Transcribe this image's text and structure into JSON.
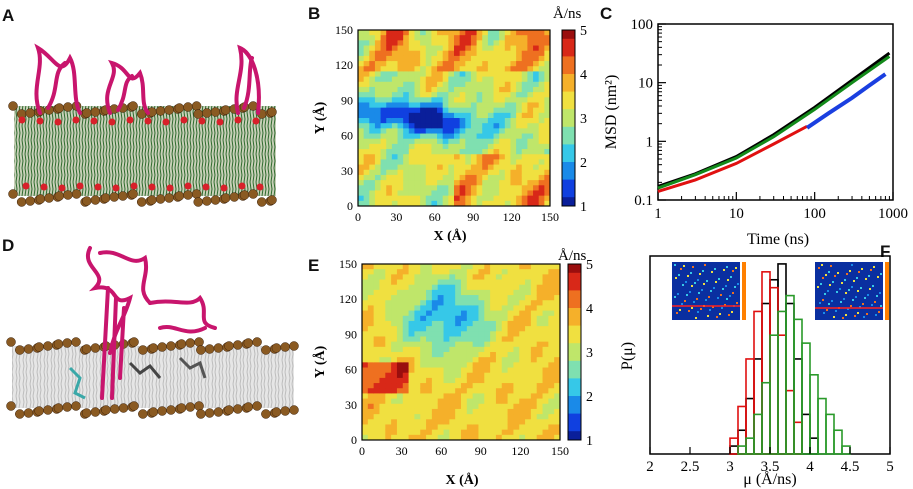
{
  "panels": {
    "A": {
      "letter": "A"
    },
    "B": {
      "letter": "B",
      "unit": "Å/ns",
      "xlabel": "X (Å)",
      "ylabel": "Y (Å)",
      "xticks": [
        "0",
        "30",
        "60",
        "90",
        "120",
        "150"
      ],
      "yticks": [
        "0",
        "30",
        "60",
        "90",
        "120",
        "150"
      ],
      "cbar_ticks": [
        "5",
        "4",
        "3",
        "2",
        "1"
      ]
    },
    "C": {
      "letter": "C",
      "xlabel": "Time (ns)",
      "ylabel": "MSD (nm²)",
      "xticks": [
        "1",
        "10",
        "100",
        "1000"
      ],
      "yticks": [
        "100",
        "10",
        "1",
        "0.1"
      ]
    },
    "D": {
      "letter": "D"
    },
    "E": {
      "letter": "E",
      "unit": "Å/ns",
      "xlabel": "X (Å)",
      "ylabel": "Y (Å)",
      "xticks": [
        "0",
        "30",
        "60",
        "90",
        "120",
        "150"
      ],
      "yticks": [
        "0",
        "30",
        "60",
        "90",
        "120",
        "150"
      ],
      "cbar_ticks": [
        "5",
        "4",
        "3",
        "2",
        "1"
      ]
    },
    "F": {
      "letter": "F",
      "xlabel": "μ (Å/ns)",
      "ylabel": "P(μ)",
      "xticks": [
        "2",
        "2.5",
        "3",
        "3.5",
        "4",
        "4.5",
        "5"
      ]
    }
  },
  "chart_data": [
    {
      "panel": "C",
      "type": "line",
      "xscale": "log",
      "yscale": "log",
      "xlim": [
        1,
        1000
      ],
      "ylim": [
        0.1,
        100
      ],
      "series": [
        {
          "name": "black",
          "color": "#000000",
          "x": [
            1,
            3,
            10,
            30,
            100,
            300,
            900
          ],
          "y": [
            0.17,
            0.28,
            0.55,
            1.3,
            3.8,
            11,
            32
          ]
        },
        {
          "name": "green",
          "color": "#138a1a",
          "x": [
            1,
            3,
            10,
            30,
            100,
            300,
            900
          ],
          "y": [
            0.16,
            0.27,
            0.52,
            1.2,
            3.5,
            10,
            28
          ]
        },
        {
          "name": "red",
          "color": "#e01010",
          "x": [
            1,
            3,
            10,
            30,
            80
          ],
          "y": [
            0.14,
            0.22,
            0.42,
            0.9,
            1.8
          ]
        },
        {
          "name": "blue",
          "color": "#1a3fe0",
          "x": [
            80,
            150,
            300,
            500,
            800
          ],
          "y": [
            1.7,
            3.0,
            5.5,
            9,
            14
          ]
        }
      ]
    },
    {
      "panel": "F",
      "type": "bar",
      "xlim": [
        2,
        5
      ],
      "ylim": [
        0,
        0.25
      ],
      "bin_width": 0.1,
      "series": [
        {
          "name": "black",
          "color": "#000000",
          "bins": [
            3.0,
            3.1,
            3.2,
            3.3,
            3.4,
            3.5,
            3.6,
            3.7,
            3.8,
            3.9,
            4.0
          ],
          "values": [
            0.01,
            0.03,
            0.07,
            0.12,
            0.19,
            0.22,
            0.24,
            0.19,
            0.12,
            0.05,
            0.02
          ]
        },
        {
          "name": "red",
          "color": "#e01010",
          "bins": [
            3.0,
            3.1,
            3.2,
            3.3,
            3.4,
            3.5,
            3.6,
            3.7,
            3.8
          ],
          "values": [
            0.02,
            0.06,
            0.12,
            0.18,
            0.23,
            0.21,
            0.15,
            0.08,
            0.04
          ]
        },
        {
          "name": "green",
          "color": "#2a9a2a",
          "bins": [
            3.1,
            3.2,
            3.3,
            3.4,
            3.5,
            3.6,
            3.7,
            3.8,
            3.9,
            4.0,
            4.1,
            4.2,
            4.3,
            4.4
          ],
          "values": [
            0.01,
            0.02,
            0.05,
            0.09,
            0.15,
            0.18,
            0.2,
            0.17,
            0.14,
            0.1,
            0.07,
            0.05,
            0.03,
            0.01
          ]
        }
      ]
    }
  ]
}
